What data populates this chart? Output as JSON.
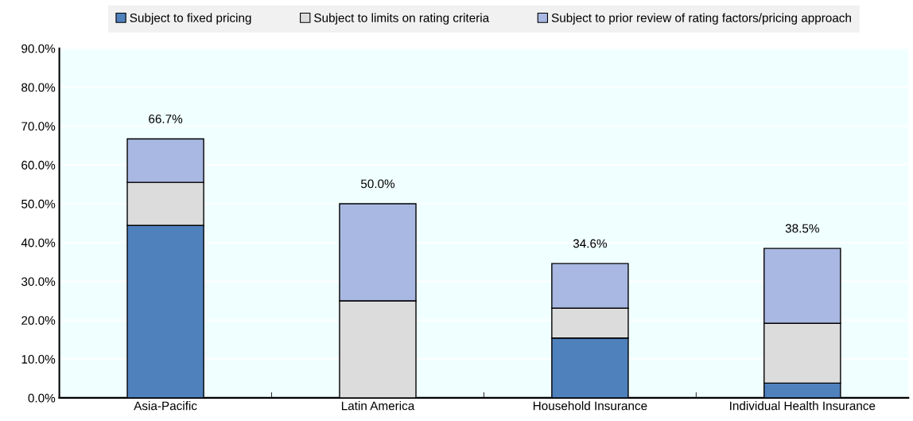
{
  "chart_data": {
    "type": "bar",
    "stacked": true,
    "categories": [
      "Asia-Pacific",
      "Latin America",
      "Household Insurance",
      "Individual Health Insurance"
    ],
    "series": [
      {
        "name": "Subject to fixed pricing",
        "color": "#4f81bd",
        "values": [
          44.4,
          0,
          15.4,
          3.8
        ]
      },
      {
        "name": "Subject to limits on rating criteria",
        "color": "#dcdcdc",
        "values": [
          11.1,
          25,
          7.7,
          15.4
        ]
      },
      {
        "name": "Subject to prior review of rating factors/pricing approach",
        "color": "#a8b8e2",
        "values": [
          11.2,
          25,
          11.5,
          19.3
        ]
      }
    ],
    "totals": [
      "66.7%",
      "50.0%",
      "34.6%",
      "38.5%"
    ],
    "ylim": [
      0,
      90
    ],
    "yticks": [
      {
        "value": 0,
        "label": "0.0%"
      },
      {
        "value": 10,
        "label": "10.0%"
      },
      {
        "value": 20,
        "label": "20.0%"
      },
      {
        "value": 30,
        "label": "30.0%"
      },
      {
        "value": 40,
        "label": "40.0%"
      },
      {
        "value": 50,
        "label": "50.0%"
      },
      {
        "value": 60,
        "label": "60.0%"
      },
      {
        "value": 70,
        "label": "70.0%"
      },
      {
        "value": 80,
        "label": "80.0%"
      },
      {
        "value": 90,
        "label": "90.0%"
      }
    ],
    "grid": "y",
    "legend": "top"
  }
}
